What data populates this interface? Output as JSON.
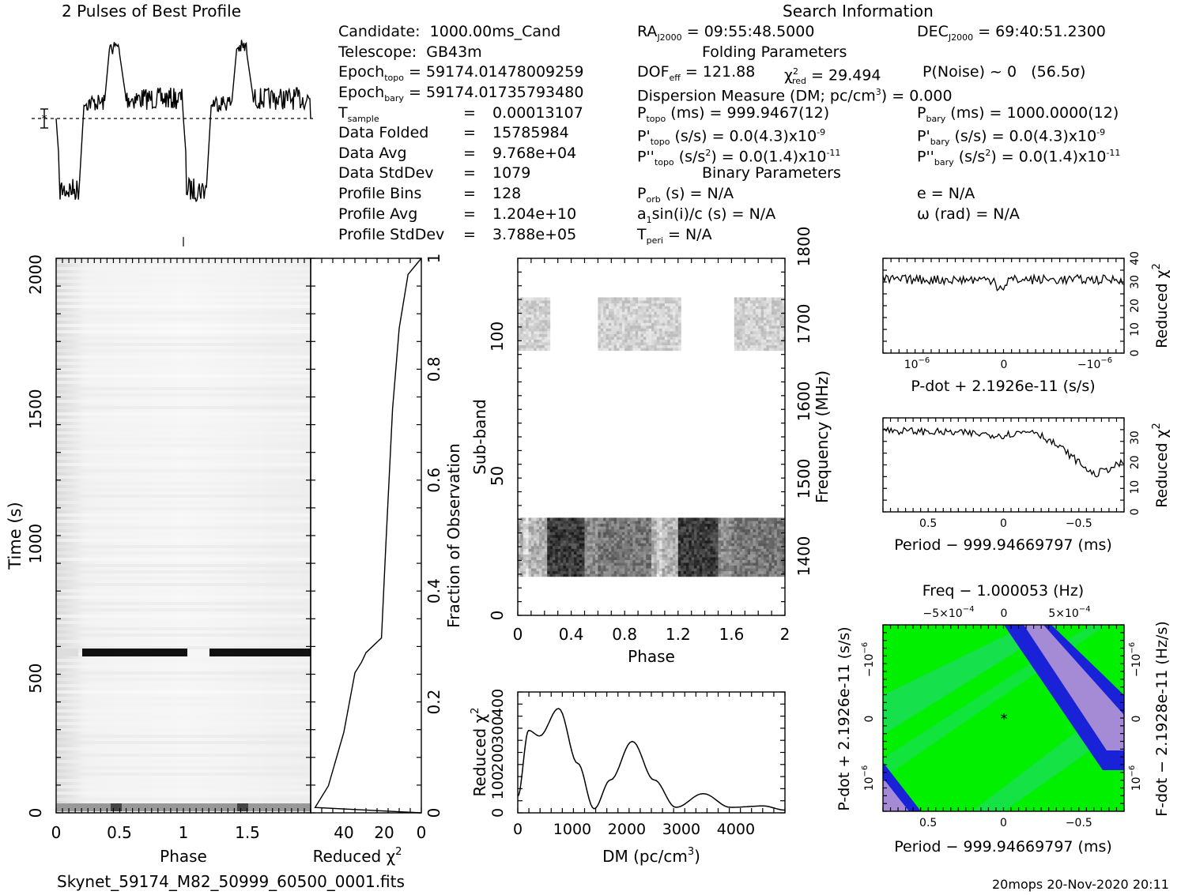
{
  "header": {
    "profile_title": "2 Pulses of Best Profile",
    "search_title": "Search Information",
    "filename": "Skynet_59174_M82_50999_60500_0001.fits",
    "footer_stamp": "20mops 20-Nov-2020 20:11"
  },
  "info": {
    "candidate": {
      "label": "Candidate:",
      "value": "1000.00ms_Cand"
    },
    "telescope": {
      "label": "Telescope:",
      "value": "GB43m"
    },
    "epoch_topo": {
      "label": "Epoch",
      "sub": "topo",
      "value": "= 59174.01478009259"
    },
    "epoch_bary": {
      "label": "Epoch",
      "sub": "bary",
      "value": "= 59174.01735793480"
    },
    "tsample": {
      "label": "T",
      "sub": "sample",
      "eq": "=",
      "value": "0.00013107"
    },
    "data_folded": {
      "label": "Data Folded",
      "eq": "=",
      "value": "15785984"
    },
    "data_avg": {
      "label": "Data Avg",
      "eq": "=",
      "value": "9.768e+04"
    },
    "data_stddev": {
      "label": "Data StdDev",
      "eq": "=",
      "value": "1079"
    },
    "profile_bins": {
      "label": "Profile Bins",
      "eq": "=",
      "value": "128"
    },
    "profile_avg": {
      "label": "Profile Avg",
      "eq": "=",
      "value": "1.204e+10"
    },
    "profile_stddev": {
      "label": "Profile StdDev",
      "eq": "=",
      "value": "3.788e+05"
    }
  },
  "search": {
    "ra": {
      "label": "RA",
      "sub": "J2000",
      "value": "= 09:55:48.5000"
    },
    "dec": {
      "label": "DEC",
      "sub": "J2000",
      "value": "= 69:40:51.2300"
    },
    "folding_title": "Folding Parameters",
    "dof": {
      "label": "DOF",
      "sub": "eff",
      "value": "= 121.88"
    },
    "chi2": {
      "label": "χ",
      "sup": "2",
      "sub": "red",
      "value": "= 29.494"
    },
    "pnoise": {
      "label": "P(Noise) ~ 0",
      "sigma": "(56.5σ)"
    },
    "dm": {
      "label": "Dispersion Measure (DM; pc/cm",
      "sup": "3",
      "value": ") = 0.000"
    },
    "ptopo": {
      "label": "P",
      "sub": "topo",
      "value": "(ms) =  999.9467(12)"
    },
    "pbary": {
      "label": "P",
      "sub": "bary",
      "value": "(ms) =  1000.0000(12)"
    },
    "pdtopo": {
      "label": "P'",
      "sub": "topo",
      "value": "(s/s) = 0.0(4.3)x10",
      "exp": "-9"
    },
    "pdbary": {
      "label": "P'",
      "sub": "bary",
      "value": "(s/s) = 0.0(4.3)x10",
      "exp": "-9"
    },
    "pddtopo": {
      "label": "P''",
      "sub": "topo",
      "value": "(s/s",
      "sup": "2",
      "value2": ") = 0.0(1.4)x10",
      "exp": "-11"
    },
    "pddbary": {
      "label": "P''",
      "sub": "bary",
      "value": "(s/s",
      "sup": "2",
      "value2": ") = 0.0(1.4)x10",
      "exp": "-11"
    },
    "binary_title": "Binary Parameters",
    "porb": {
      "label": "P",
      "sub": "orb",
      "value": "(s) = N/A"
    },
    "ecc": {
      "label": "e = N/A"
    },
    "asini": {
      "label": "a",
      "sub": "1",
      "value": "sin(i)/c (s) = N/A"
    },
    "omega": {
      "label": "ω (rad) = N/A"
    },
    "tperi": {
      "label": "T",
      "sub": "peri",
      "value": "= N/A"
    }
  },
  "axes": {
    "time_ylabel": "Time (s)",
    "phase_xlabel": "Phase",
    "redchi_label": "Reduced χ",
    "redchi_sup": "2",
    "fraction_label": "Fraction of Observation",
    "subband_label": "Sub-band",
    "freq_label": "Frequency (MHz)",
    "dm_xlabel": "DM (pc/cm",
    "dm_sup": "3",
    "pdot_xlabel": "P-dot + 2.1926e-11 (s/s)",
    "period_xlabel": "Period − 999.94669797 (ms)",
    "freq_top_label": "Freq − 1.000053 (Hz)",
    "pdot_ylabel": "P-dot + 2.1926e-11 (s/s)",
    "fdot_ylabel": "F-dot − 2.1928e-11 (Hz/s)"
  },
  "ticks": {
    "time_y": [
      "0",
      "500",
      "1000",
      "1500",
      "2000"
    ],
    "phase_x": [
      "0",
      "0.5",
      "1",
      "1.5"
    ],
    "redchi_x": [
      "40",
      "20",
      "0"
    ],
    "fraction_y": [
      "0",
      "0.2",
      "0.4",
      "0.6",
      "0.8",
      "1"
    ],
    "subband_y": [
      "0",
      "50",
      "100"
    ],
    "subband_phase_x": [
      "0",
      "0.4",
      "0.8",
      "1.2",
      "1.6",
      "2"
    ],
    "freq_y": [
      "1400",
      "1500",
      "1600",
      "1700",
      "1800"
    ],
    "dm_x": [
      "0",
      "1000",
      "2000",
      "3000",
      "4000"
    ],
    "dm_y": [
      "0",
      "100",
      "200",
      "300",
      "400"
    ],
    "pdot_x": [
      "10",
      "0",
      "−10"
    ],
    "pdot_x_exp": "−6",
    "pdot_y": [
      "0",
      "10",
      "20",
      "30",
      "40"
    ],
    "period_x": [
      "0.5",
      "0",
      "−0.5"
    ],
    "period_y": [
      "0",
      "10",
      "20",
      "30"
    ],
    "freq_top": [
      "−5×10",
      "0",
      "5×10"
    ],
    "freq_top_exp": "−4",
    "pp_left_y": [
      "10",
      "0",
      "−10"
    ],
    "pp_left_exp_top": "−6",
    "pp_right_y": [
      "10",
      "0",
      "−10"
    ],
    "pp_right_exp": "−6"
  },
  "chart_data": [
    {
      "type": "line",
      "name": "profile",
      "x": [
        0,
        0.25,
        0.5,
        0.75,
        1,
        1.25,
        1.5,
        1.75,
        2
      ],
      "y_shape": "two pulses (dip then peak) per rotation"
    },
    {
      "type": "heatmap",
      "name": "time-phase",
      "xlim": [
        0,
        2
      ],
      "ylim": [
        0,
        2060
      ],
      "ylabel": "Time (s)",
      "xlabel": "Phase",
      "bright_row_time": 620
    },
    {
      "type": "line",
      "name": "reduced-chi2-vs-time",
      "xlabel": "Reduced χ2",
      "xlim": [
        50,
        0
      ],
      "points": [
        [
          0,
          2060
        ],
        [
          6,
          2000
        ],
        [
          10,
          1800
        ],
        [
          13,
          1500
        ],
        [
          16,
          1000
        ],
        [
          18,
          650
        ],
        [
          25,
          595
        ],
        [
          27,
          560
        ],
        [
          30,
          520
        ],
        [
          35,
          300
        ],
        [
          42,
          100
        ],
        [
          48,
          20
        ],
        [
          0,
          0
        ]
      ]
    },
    {
      "type": "heatmap",
      "name": "subband-phase",
      "xlabel": "Phase",
      "ylabel": "Sub-band",
      "xlim": [
        0,
        2
      ],
      "ylim": [
        0,
        128
      ]
    },
    {
      "type": "line",
      "name": "dm-curve",
      "xlabel": "DM (pc/cm3)",
      "ylabel": "Reduced χ2",
      "xlim": [
        0,
        4900
      ],
      "ylim": [
        0,
        440
      ],
      "x": [
        0,
        200,
        400,
        750,
        1100,
        1400,
        1700,
        2100,
        2500,
        2900,
        3400,
        3900,
        4500,
        4900
      ],
      "y": [
        60,
        300,
        280,
        380,
        180,
        15,
        120,
        260,
        120,
        20,
        70,
        20,
        25,
        10
      ]
    },
    {
      "type": "line",
      "name": "pdot-curve",
      "xlabel": "P-dot + 2.1926e-11 (s/s)",
      "ylabel": "Reduced χ2",
      "ylim": [
        0,
        40
      ],
      "mean": 30
    },
    {
      "type": "line",
      "name": "period-curve",
      "xlabel": "Period − 999.94669797 (ms)",
      "ylabel": "Reduced χ2",
      "ylim": [
        0,
        38
      ],
      "x": [
        0.8,
        0.3,
        0,
        -0.2,
        -0.4,
        -0.6,
        -0.8
      ],
      "y": [
        33,
        32,
        31,
        33,
        25,
        15,
        20
      ]
    },
    {
      "type": "heatmap",
      "name": "p-pdot",
      "xlabel": "Period − 999.94669797 (ms)",
      "ylabel": "P-dot + 2.1926e-11 (s/s)",
      "colors": [
        "#00ff00",
        "#33cc99",
        "#0000cc",
        "#aa88dd"
      ]
    }
  ],
  "colors": {
    "green": "#00ff00",
    "blue": "#0000cc",
    "violet": "#a58ad6",
    "teal": "#30d2a8"
  }
}
